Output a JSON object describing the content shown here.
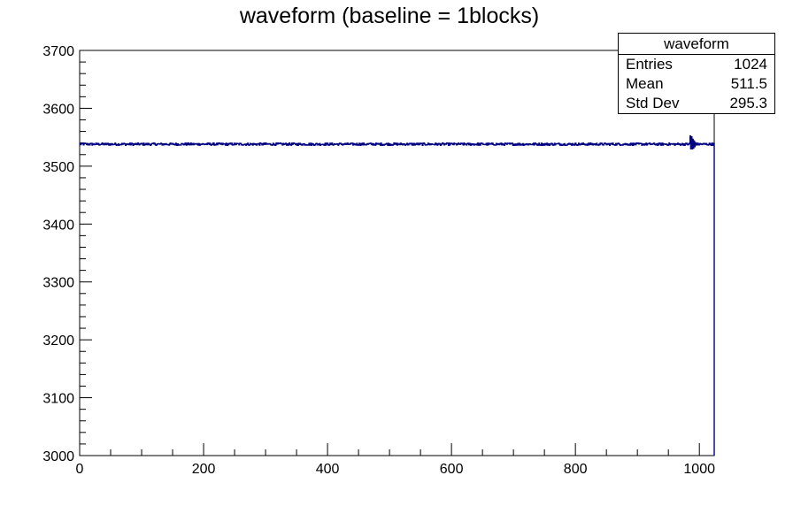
{
  "chart_data": {
    "type": "line",
    "title": "waveform (baseline = 1blocks)",
    "xlim": [
      0,
      1024
    ],
    "ylim": [
      3000,
      3700
    ],
    "x_ticks": [
      0,
      200,
      400,
      600,
      800,
      1000
    ],
    "y_ticks": [
      3000,
      3100,
      3200,
      3300,
      3400,
      3500,
      3600,
      3700
    ],
    "x_tick_labels": [
      "0",
      "200",
      "400",
      "600",
      "800",
      "1000"
    ],
    "y_tick_labels": [
      "3000",
      "3100",
      "3200",
      "3300",
      "3400",
      "3500",
      "3600",
      "3700"
    ],
    "series": [
      {
        "color": "#000080",
        "baseline": 3538,
        "noise_amplitude": 2,
        "end_x": 1023,
        "end_drop_to": 3000,
        "spike": {
          "x_range": [
            985,
            995
          ],
          "max": 3552,
          "min": 3530
        }
      }
    ],
    "legend": {
      "placement": "top-right",
      "name": "waveform",
      "rows": [
        {
          "label": "Entries",
          "value": "1024"
        },
        {
          "label": "Mean",
          "value": "511.5"
        },
        {
          "label": "Std Dev",
          "value": "295.3"
        }
      ]
    },
    "grid": false
  }
}
